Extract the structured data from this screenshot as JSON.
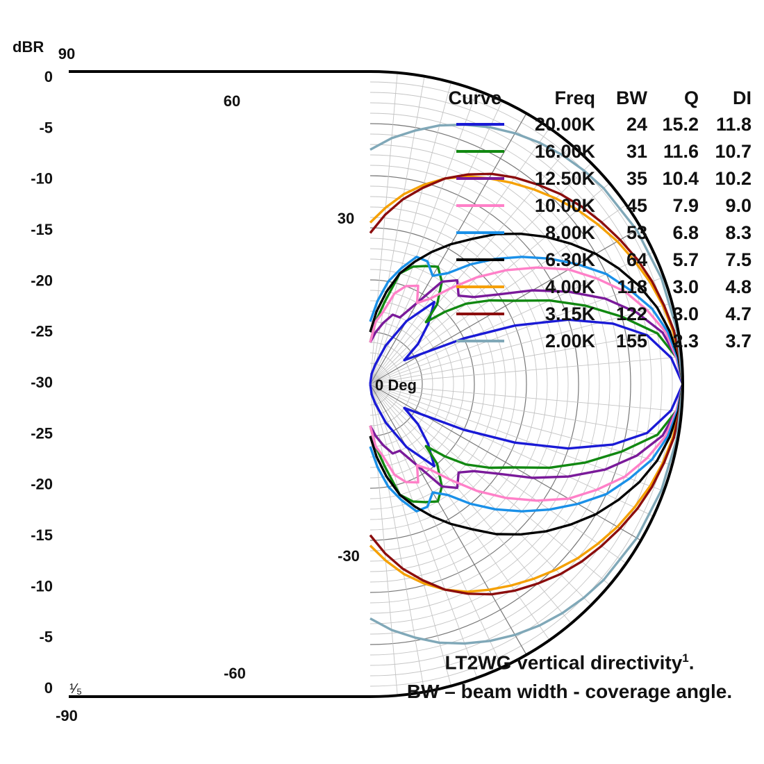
{
  "chart_data": {
    "type": "polar",
    "title": "",
    "r_label": "dBR",
    "r_ticks": [
      "0",
      "-5",
      "-10",
      "-15",
      "-20",
      "-25",
      "-30",
      "-25",
      "-20",
      "-15",
      "-10",
      "-5",
      "0"
    ],
    "angle_labels": [
      "90",
      "60",
      "30",
      "0 Deg",
      "-30",
      "-60",
      "-90"
    ],
    "r_range": [
      -30,
      0
    ],
    "angle_range": [
      -90,
      90
    ],
    "grid": true,
    "annotation": "¹⁄₅",
    "table_headers": [
      "Curve",
      "Freq",
      "BW",
      "Q",
      "DI"
    ],
    "series": [
      {
        "freq": "20.00K",
        "bw": "24",
        "q": "15.2",
        "di": "11.8",
        "color": "#1a1ad6",
        "points": [
          [
            0,
            0
          ],
          [
            5,
            -1
          ],
          [
            10,
            -3
          ],
          [
            14,
            -6
          ],
          [
            18,
            -10
          ],
          [
            22,
            -15
          ],
          [
            26,
            -20
          ],
          [
            30,
            -24
          ],
          [
            35,
            -26
          ],
          [
            40,
            -24
          ],
          [
            46,
            -22
          ],
          [
            52,
            -20
          ],
          [
            60,
            -23
          ],
          [
            68,
            -26
          ],
          [
            75,
            -28
          ],
          [
            82,
            -29
          ],
          [
            90,
            -30
          ]
        ]
      },
      {
        "freq": "16.00K",
        "bw": "31",
        "q": "11.6",
        "di": "10.7",
        "color": "#118811",
        "points": [
          [
            0,
            0
          ],
          [
            5,
            -0.5
          ],
          [
            10,
            -2
          ],
          [
            15,
            -5
          ],
          [
            20,
            -8
          ],
          [
            25,
            -11
          ],
          [
            30,
            -14
          ],
          [
            35,
            -16
          ],
          [
            40,
            -18
          ],
          [
            44,
            -20
          ],
          [
            48,
            -22
          ],
          [
            50,
            -20
          ],
          [
            55,
            -18
          ],
          [
            60,
            -17
          ],
          [
            65,
            -17.5
          ],
          [
            70,
            -18
          ],
          [
            75,
            -19
          ],
          [
            80,
            -22
          ],
          [
            85,
            -24
          ],
          [
            90,
            -26
          ]
        ]
      },
      {
        "freq": "12.50K",
        "bw": "35",
        "q": "10.4",
        "di": "10.2",
        "color": "#7a1a9a",
        "points": [
          [
            0,
            0
          ],
          [
            5,
            -0.5
          ],
          [
            10,
            -1.5
          ],
          [
            15,
            -3.5
          ],
          [
            20,
            -6
          ],
          [
            25,
            -9
          ],
          [
            30,
            -12
          ],
          [
            35,
            -15
          ],
          [
            40,
            -17
          ],
          [
            45,
            -18
          ],
          [
            50,
            -17
          ],
          [
            55,
            -18
          ],
          [
            60,
            -21
          ],
          [
            66,
            -23
          ],
          [
            72,
            -23
          ],
          [
            78,
            -24
          ],
          [
            84,
            -25
          ],
          [
            90,
            -26
          ]
        ]
      },
      {
        "freq": "10.00K",
        "bw": "45",
        "q": "7.9",
        "di": "9.0",
        "color": "#ff80c8",
        "points": [
          [
            0,
            0
          ],
          [
            5,
            -0.5
          ],
          [
            10,
            -1.2
          ],
          [
            15,
            -2.5
          ],
          [
            20,
            -4
          ],
          [
            25,
            -6
          ],
          [
            30,
            -8
          ],
          [
            35,
            -10.5
          ],
          [
            40,
            -13
          ],
          [
            45,
            -15.5
          ],
          [
            50,
            -18
          ],
          [
            55,
            -20
          ],
          [
            60,
            -21
          ],
          [
            64,
            -19.5
          ],
          [
            70,
            -20
          ],
          [
            75,
            -21
          ],
          [
            80,
            -23
          ],
          [
            85,
            -24
          ],
          [
            90,
            -26
          ]
        ]
      },
      {
        "freq": "8.00K",
        "bw": "53",
        "q": "6.8",
        "di": "8.3",
        "color": "#1a90e8",
        "points": [
          [
            0,
            0
          ],
          [
            5,
            -0.4
          ],
          [
            10,
            -1
          ],
          [
            15,
            -2
          ],
          [
            20,
            -3.5
          ],
          [
            25,
            -5
          ],
          [
            30,
            -7
          ],
          [
            35,
            -9
          ],
          [
            40,
            -11
          ],
          [
            45,
            -13
          ],
          [
            50,
            -15
          ],
          [
            55,
            -17
          ],
          [
            60,
            -18
          ],
          [
            65,
            -17
          ],
          [
            70,
            -17
          ],
          [
            75,
            -18.5
          ],
          [
            80,
            -20
          ],
          [
            85,
            -22
          ],
          [
            90,
            -24
          ]
        ]
      },
      {
        "freq": "6.30K",
        "bw": "64",
        "q": "5.7",
        "di": "7.5",
        "color": "#000000",
        "points": [
          [
            0,
            0
          ],
          [
            5,
            -0.3
          ],
          [
            10,
            -0.8
          ],
          [
            15,
            -1.5
          ],
          [
            20,
            -2.5
          ],
          [
            25,
            -3.7
          ],
          [
            30,
            -5
          ],
          [
            35,
            -6.5
          ],
          [
            40,
            -8
          ],
          [
            45,
            -9.6
          ],
          [
            50,
            -11.2
          ],
          [
            55,
            -13
          ],
          [
            60,
            -14.5
          ],
          [
            65,
            -16
          ],
          [
            70,
            -17.5
          ],
          [
            75,
            -19
          ],
          [
            80,
            -21
          ],
          [
            85,
            -23
          ],
          [
            90,
            -25
          ]
        ]
      },
      {
        "freq": "4.00K",
        "bw": "118",
        "q": "3.0",
        "di": "4.8",
        "color": "#f5a000",
        "points": [
          [
            0,
            0
          ],
          [
            5,
            -0.2
          ],
          [
            10,
            -0.5
          ],
          [
            15,
            -0.9
          ],
          [
            20,
            -1.4
          ],
          [
            25,
            -2
          ],
          [
            30,
            -2.6
          ],
          [
            35,
            -3.3
          ],
          [
            40,
            -4
          ],
          [
            45,
            -4.8
          ],
          [
            50,
            -5.6
          ],
          [
            55,
            -6.4
          ],
          [
            60,
            -7.2
          ],
          [
            65,
            -8
          ],
          [
            70,
            -9
          ],
          [
            75,
            -10.2
          ],
          [
            80,
            -11.5
          ],
          [
            85,
            -13
          ],
          [
            90,
            -14.5
          ]
        ]
      },
      {
        "freq": "3.15K",
        "bw": "122",
        "q": "3.0",
        "di": "4.7",
        "color": "#8b0d0d",
        "points": [
          [
            0,
            0
          ],
          [
            5,
            -0.2
          ],
          [
            10,
            -0.4
          ],
          [
            15,
            -0.8
          ],
          [
            20,
            -1.2
          ],
          [
            25,
            -1.7
          ],
          [
            30,
            -2.3
          ],
          [
            35,
            -2.9
          ],
          [
            40,
            -3.5
          ],
          [
            45,
            -4.2
          ],
          [
            50,
            -5
          ],
          [
            55,
            -5.8
          ],
          [
            60,
            -6.7
          ],
          [
            65,
            -7.8
          ],
          [
            70,
            -9
          ],
          [
            75,
            -10.5
          ],
          [
            80,
            -12
          ],
          [
            85,
            -13.7
          ],
          [
            90,
            -15.5
          ]
        ]
      },
      {
        "freq": "2.00K",
        "bw": "155",
        "q": "2.3",
        "di": "3.7",
        "color": "#80a8b8",
        "points": [
          [
            0,
            0
          ],
          [
            10,
            -0.1
          ],
          [
            20,
            -0.25
          ],
          [
            30,
            -0.45
          ],
          [
            40,
            -0.75
          ],
          [
            45,
            -1
          ],
          [
            50,
            -1.3
          ],
          [
            55,
            -1.7
          ],
          [
            60,
            -2.2
          ],
          [
            65,
            -2.8
          ],
          [
            70,
            -3.5
          ],
          [
            75,
            -4.3
          ],
          [
            80,
            -5.3
          ],
          [
            85,
            -6.3
          ],
          [
            90,
            -7.5
          ]
        ]
      }
    ]
  },
  "caption": {
    "line1": "LT2WG vertical directivity",
    "line1_sup": "1",
    "line1_end": ".",
    "line2": "BW – beam width - coverage angle."
  }
}
